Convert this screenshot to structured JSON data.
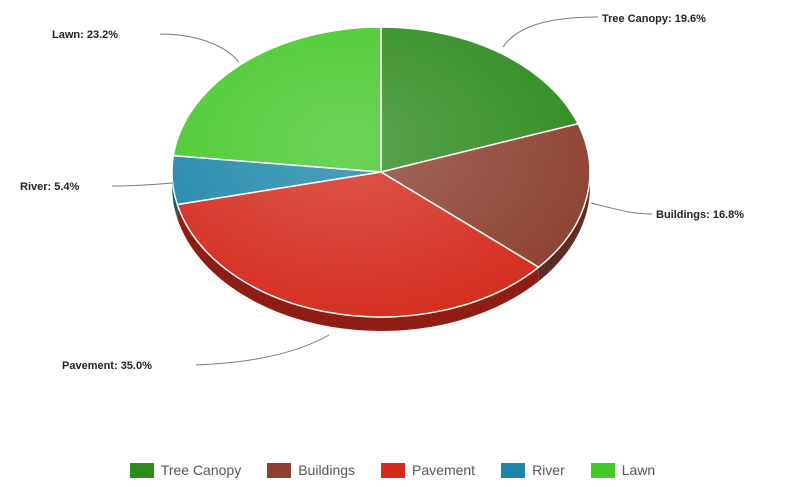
{
  "chart_data": {
    "type": "pie",
    "title": "",
    "legend_position": "bottom",
    "slices": [
      {
        "name": "Tree Canopy",
        "value": 19.6,
        "label": "Tree Canopy: 19.6%",
        "color": "#2e8b1e"
      },
      {
        "name": "Buildings",
        "value": 16.8,
        "label": "Buildings: 16.8%",
        "color": "#8b4030"
      },
      {
        "name": "Pavement",
        "value": 35.0,
        "label": "Pavement: 35.0%",
        "color": "#d42a1c"
      },
      {
        "name": "River",
        "value": 5.4,
        "label": "River: 5.4%",
        "color": "#1b86a8"
      },
      {
        "name": "Lawn",
        "value": 23.2,
        "label": "Lawn: 23.2%",
        "color": "#45c82a"
      }
    ]
  }
}
